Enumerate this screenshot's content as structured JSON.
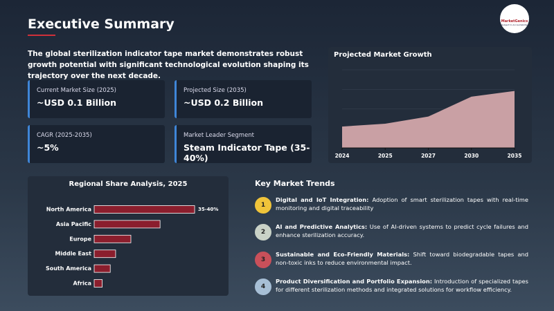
{
  "header": {
    "title": "Executive Summary",
    "logo_name": "MarketGenics",
    "logo_tagline": "Subject to Accountability"
  },
  "intro": "The global sterilization indicator tape market demonstrates robust growth potential with significant technological evolution shaping its trajectory over the next decade.",
  "metrics": [
    {
      "label": "Current Market Size (2025)",
      "value": "~USD 0.1 Billion"
    },
    {
      "label": "Projected Size (2035)",
      "value": "~USD 0.2 Billion"
    },
    {
      "label": "CAGR (2025-2035)",
      "value": "~5%"
    },
    {
      "label": "Market Leader Segment",
      "value": "Steam Indicator Tape (35-40%)"
    }
  ],
  "trends": {
    "title": "Key Market Trends",
    "items": [
      {
        "number": "1",
        "title": "Digital and IoT Integration:",
        "text": "Adoption of smart sterilization tapes with real-time monitoring and digital traceability"
      },
      {
        "number": "2",
        "title": "AI and Predictive Analytics:",
        "text": "Use of AI-driven systems to predict cycle failures and enhance sterilization accuracy."
      },
      {
        "number": "3",
        "title": "Sustainable and Eco-Friendly Materials:",
        "text": "Shift toward biodegradable tapes and non-toxic inks to reduce environmental impact."
      },
      {
        "number": "4",
        "title": "Product Diversification and Portfolio Expansion:",
        "text": "Introduction of specialized tapes for different sterilization methods and integrated solutions for workflow efficiency."
      }
    ]
  },
  "chart_data": [
    {
      "type": "area",
      "title": "Projected Market Growth",
      "categories": [
        "2024",
        "2025",
        "2027",
        "2030",
        "2035"
      ],
      "values": [
        0.075,
        0.085,
        0.11,
        0.18,
        0.2
      ],
      "color": "#c9a0a4",
      "ylim": [
        0,
        0.25
      ]
    },
    {
      "type": "hbar",
      "title": "Regional Share Analysis, 2025",
      "categories": [
        "North America",
        "Asia Pacific",
        "Europe",
        "Middle East",
        "South America",
        "Africa"
      ],
      "values": [
        37.5,
        24.6,
        13.7,
        8,
        6,
        3
      ],
      "value_labels": [
        "35-40%",
        null,
        null,
        null,
        null,
        null
      ],
      "color": "#8b1e2d",
      "xlim": [
        0,
        40
      ]
    }
  ]
}
